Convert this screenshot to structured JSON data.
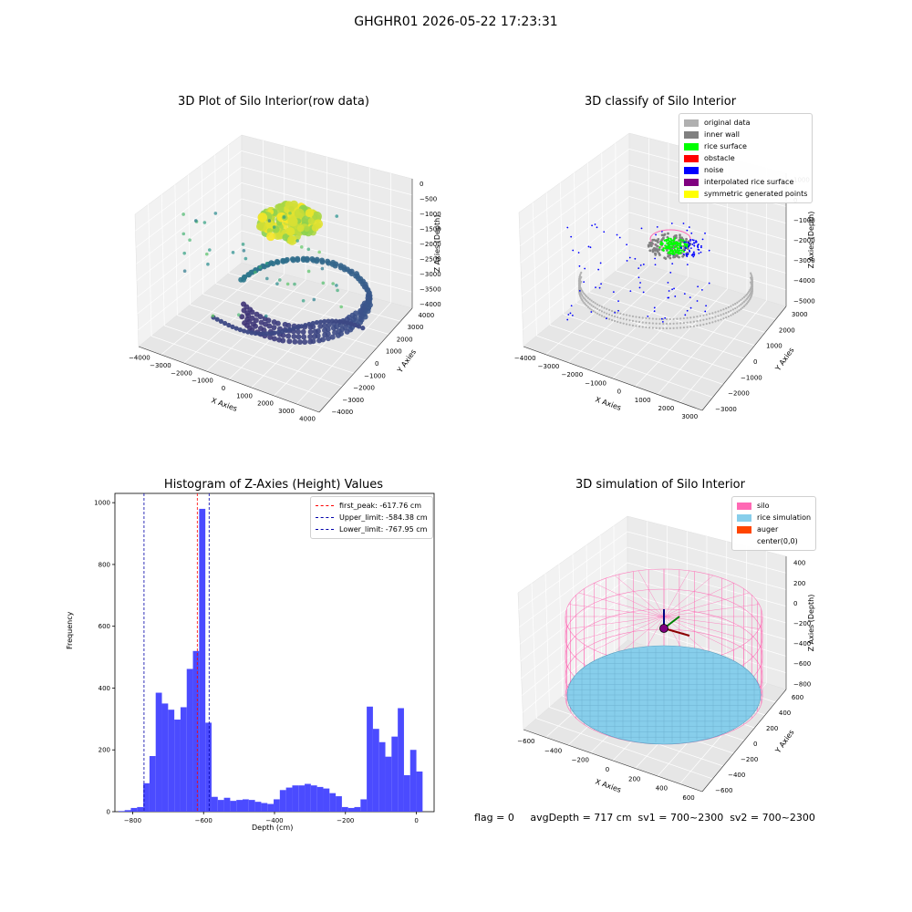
{
  "suptitle": "GHGHR01 2026-05-22 17:23:31",
  "status_text": "flag = 0     avgDepth = 717 cm  sv1 = 700~2300  sv2 = 700~2300",
  "chart_data": [
    {
      "id": "raw",
      "type": "scatter3d",
      "title": "3D Plot of Silo Interior(row data)",
      "xlabel": "X Axies",
      "ylabel": "Y Axies",
      "zlabel": "Z Axies (Depth)",
      "xticks": [
        "−4000",
        "−3000",
        "−2000",
        "−1000",
        "0",
        "1000",
        "2000",
        "3000",
        "4000"
      ],
      "yticks": [
        "−4000",
        "−3000",
        "−2000",
        "−1000",
        "0",
        "1000",
        "2000",
        "3000",
        "4000"
      ],
      "zticks": [
        "0",
        "−500",
        "−1000",
        "−1500",
        "−2000",
        "−2500",
        "−3000",
        "−3500",
        "−4000"
      ],
      "xlim": [
        -4000,
        4000
      ],
      "ylim": [
        -4000,
        4000
      ],
      "zlim": [
        -4000,
        0
      ]
    },
    {
      "id": "classify",
      "type": "scatter3d",
      "title": "3D classify of Silo Interior",
      "xlabel": "X Axies",
      "ylabel": "Y Axies",
      "zlabel": "Z Axies (Depth)",
      "xticks": [
        "−4000",
        "−3000",
        "−2000",
        "−1000",
        "0",
        "1000",
        "2000",
        "3000"
      ],
      "yticks": [
        "−3000",
        "−2000",
        "−1000",
        "0",
        "1000",
        "2000",
        "3000"
      ],
      "zticks": [
        "1000",
        "0",
        "−1000",
        "−2000",
        "−3000",
        "−4000",
        "−5000"
      ],
      "legend_position": "top-right",
      "legend": [
        {
          "label": "original data",
          "color": "#b0b0b0"
        },
        {
          "label": "inner wall",
          "color": "#808080"
        },
        {
          "label": "rice surface",
          "color": "#00ff00"
        },
        {
          "label": "obstacle",
          "color": "#ff0000"
        },
        {
          "label": "noise",
          "color": "#0000ff"
        },
        {
          "label": "interpolated rice surface",
          "color": "#800080"
        },
        {
          "label": "symmetric generated points",
          "color": "#ffff00"
        }
      ]
    },
    {
      "id": "hist",
      "type": "bar",
      "title": "Histogram of Z-Axies (Height) Values",
      "xlabel": "Depth (cm)",
      "ylabel": "Frequency",
      "bar_color": "#4b4bff",
      "xlim": [
        -850,
        50
      ],
      "ylim": [
        0,
        1030
      ],
      "xticks": [
        -800,
        -600,
        -400,
        -200,
        0
      ],
      "yticks": [
        0,
        200,
        400,
        600,
        800,
        1000
      ],
      "bin_width": 17.5,
      "bin_start": -840,
      "values": [
        2,
        5,
        12,
        15,
        92,
        180,
        385,
        350,
        330,
        298,
        338,
        462,
        520,
        980,
        288,
        48,
        38,
        45,
        35,
        38,
        40,
        38,
        32,
        28,
        25,
        40,
        70,
        78,
        85,
        85,
        90,
        85,
        80,
        75,
        60,
        50,
        15,
        12,
        15,
        40,
        340,
        268,
        225,
        178,
        243,
        335,
        118,
        200,
        130
      ],
      "vlines": [
        {
          "label": "first_peak: -617.76 cm",
          "x": -617.76,
          "color": "#ff0000"
        },
        {
          "label": "Upper_limit: -584.38 cm",
          "x": -584.38,
          "color": "#0000aa"
        },
        {
          "label": "Lower_limit: -767.95 cm",
          "x": -767.95,
          "color": "#0000aa"
        }
      ],
      "legend_position": "top-right"
    },
    {
      "id": "sim",
      "type": "surface3d",
      "title": "3D simulation of Silo Interior",
      "xlabel": "X Axies",
      "ylabel": "Y Axies",
      "zlabel": "Z Axies (Depth)",
      "xticks": [
        "−600",
        "−400",
        "−200",
        "0",
        "200",
        "400",
        "600"
      ],
      "yticks": [
        "−600",
        "−400",
        "−200",
        "0",
        "200",
        "400",
        "600"
      ],
      "zticks": [
        "400",
        "200",
        "0",
        "−200",
        "−400",
        "−600",
        "−800"
      ],
      "legend_position": "top-right",
      "legend": [
        {
          "label": "silo",
          "color": "#ff69b4"
        },
        {
          "label": "rice simulation",
          "color": "#87ceeb"
        },
        {
          "label": "auger",
          "color": "#ff4500"
        },
        {
          "label": "center(0,0)",
          "color": ""
        }
      ]
    }
  ]
}
